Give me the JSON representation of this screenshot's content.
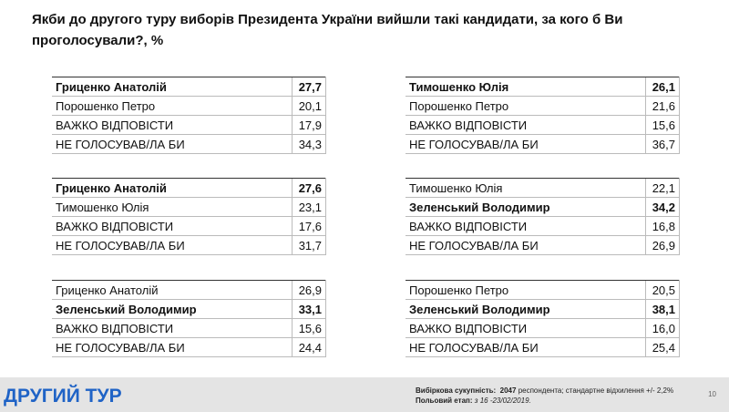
{
  "title_lines": [
    "Якби до другого туру виборів Президента України вийшли такі кандидати, за кого б Ви",
    "проголосували?, %"
  ],
  "tables": [
    {
      "rows": [
        {
          "name": "Гриценко Анатолій",
          "value": "27,7",
          "bold": true
        },
        {
          "name": "Порошенко Петро",
          "value": "20,1",
          "bold": false
        },
        {
          "name": "ВАЖКО ВІДПОВІСТИ",
          "value": "17,9",
          "bold": false
        },
        {
          "name": "НЕ ГОЛОСУВАВ/ЛА БИ",
          "value": "34,3",
          "bold": false
        }
      ]
    },
    {
      "rows": [
        {
          "name": "Тимошенко Юлія",
          "value": "26,1",
          "bold": true
        },
        {
          "name": "Порошенко Петро",
          "value": "21,6",
          "bold": false
        },
        {
          "name": "ВАЖКО ВІДПОВІСТИ",
          "value": "15,6",
          "bold": false
        },
        {
          "name": "НЕ ГОЛОСУВАВ/ЛА БИ",
          "value": "36,7",
          "bold": false
        }
      ]
    },
    {
      "rows": [
        {
          "name": "Гриценко Анатолій",
          "value": "27,6",
          "bold": true
        },
        {
          "name": "Тимошенко Юлія",
          "value": "23,1",
          "bold": false
        },
        {
          "name": "ВАЖКО ВІДПОВІСТИ",
          "value": "17,6",
          "bold": false
        },
        {
          "name": "НЕ ГОЛОСУВАВ/ЛА БИ",
          "value": "31,7",
          "bold": false
        }
      ]
    },
    {
      "rows": [
        {
          "name": "Тимошенко Юлія",
          "value": "22,1",
          "bold": false
        },
        {
          "name": "Зеленський Володимир",
          "value": "34,2",
          "bold": true
        },
        {
          "name": "ВАЖКО ВІДПОВІСТИ",
          "value": "16,8",
          "bold": false
        },
        {
          "name": "НЕ ГОЛОСУВАВ/ЛА БИ",
          "value": "26,9",
          "bold": false
        }
      ]
    },
    {
      "rows": [
        {
          "name": "Гриценко Анатолій",
          "value": "26,9",
          "bold": false
        },
        {
          "name": "Зеленський Володимир",
          "value": "33,1",
          "bold": true
        },
        {
          "name": "ВАЖКО ВІДПОВІСТИ",
          "value": "15,6",
          "bold": false
        },
        {
          "name": "НЕ ГОЛОСУВАВ/ЛА БИ",
          "value": "24,4",
          "bold": false
        }
      ]
    },
    {
      "rows": [
        {
          "name": "Порошенко Петро",
          "value": "20,5",
          "bold": false
        },
        {
          "name": "Зеленський Володимир",
          "value": "38,1",
          "bold": true
        },
        {
          "name": "ВАЖКО ВІДПОВІСТИ",
          "value": "16,0",
          "bold": false
        },
        {
          "name": "НЕ ГОЛОСУВАВ/ЛА БИ",
          "value": "25,4",
          "bold": false
        }
      ]
    }
  ],
  "footer": {
    "section": "ДРУГИЙ ТУР",
    "sample_label": "Вибіркова сукупність:",
    "sample_size": "2047",
    "sample_rest": "респондента; стандартне  відхилення +/- 2,2%",
    "field_label": "Польовий етап:",
    "field_dates": "з 16 -23/02/2019.",
    "page": "10"
  }
}
